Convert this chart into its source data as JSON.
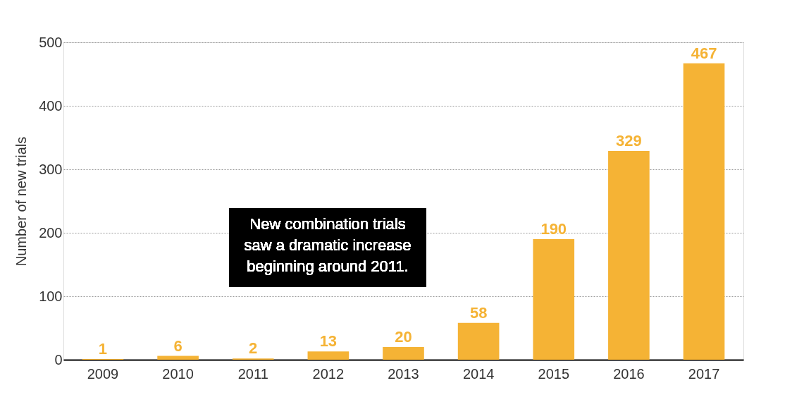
{
  "chart_data": {
    "type": "bar",
    "ylabel": "Number of new trials",
    "categories": [
      "2009",
      "2010",
      "2011",
      "2012",
      "2013",
      "2014",
      "2015",
      "2016",
      "2017"
    ],
    "values": [
      1,
      6,
      2,
      13,
      20,
      58,
      190,
      329,
      467
    ],
    "color": "#f5b335",
    "ylim": [
      0,
      500
    ],
    "yticks": [
      0,
      100,
      200,
      300,
      400,
      500
    ],
    "grid": "y",
    "data_labels": true,
    "annotations": [
      "New combination trials saw a dramatic increase beginning around 2011."
    ]
  }
}
